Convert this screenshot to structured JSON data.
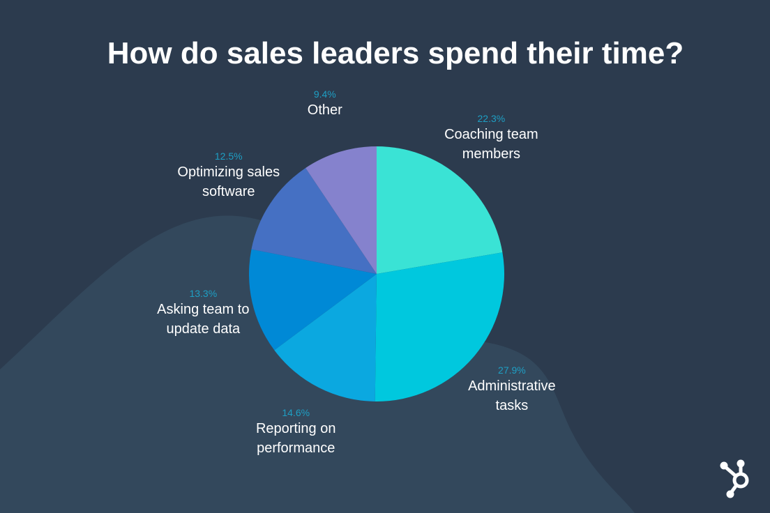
{
  "chart_data": {
    "type": "pie",
    "title": "How do sales leaders spend their time?",
    "categories": [
      "Coaching team members",
      "Administrative tasks",
      "Reporting on performance",
      "Asking team to update data",
      "Optimizing sales software",
      "Other"
    ],
    "values": [
      22.3,
      27.9,
      14.6,
      13.3,
      12.5,
      9.4
    ],
    "value_labels": [
      "22.3%",
      "27.9%",
      "14.6%",
      "13.3%",
      "12.5%",
      "9.4%"
    ],
    "colors": [
      "#3ae3d5",
      "#00c8de",
      "#0ba8e0",
      "#0089d6",
      "#4570c3",
      "#8582cd"
    ]
  }
}
